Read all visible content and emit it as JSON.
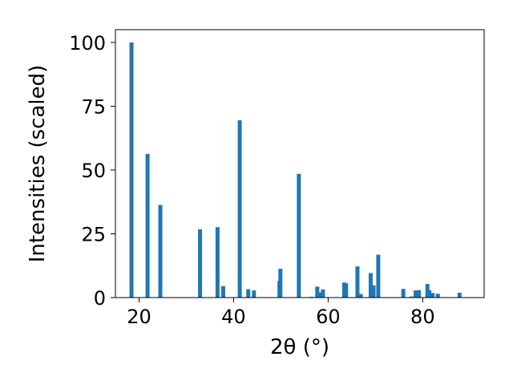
{
  "chart_data": {
    "type": "bar",
    "xlabel": "2θ (°)",
    "ylabel": "Intensities (scaled)",
    "xlim": [
      15,
      93
    ],
    "ylim": [
      0,
      105
    ],
    "xticks": [
      "20",
      "40",
      "60",
      "80"
    ],
    "yticks": [
      "0",
      "25",
      "50",
      "75",
      "100"
    ],
    "grid": false,
    "bar_color": "#1f77b4",
    "x": [
      18.4,
      21.8,
      24.5,
      32.9,
      36.6,
      37.8,
      41.3,
      43.1,
      44.3,
      49.7,
      49.9,
      53.8,
      56.4,
      57.7,
      58.2,
      58.9,
      63.4,
      63.8,
      66.2,
      66.9,
      69.0,
      69.6,
      70.6,
      75.9,
      77.6,
      78.5,
      79.2,
      81.0,
      81.4,
      82.1,
      83.2,
      87.8
    ],
    "y": [
      100,
      56.3,
      36.3,
      26.8,
      27.6,
      4.5,
      69.5,
      3.3,
      2.8,
      6.5,
      11.3,
      48.5,
      0.3,
      4.3,
      2.0,
      3.2,
      5.9,
      5.6,
      12.2,
      1.4,
      9.6,
      4.8,
      16.8,
      3.4,
      0.4,
      2.8,
      2.9,
      5.3,
      2.9,
      1.8,
      1.5,
      1.9
    ]
  }
}
